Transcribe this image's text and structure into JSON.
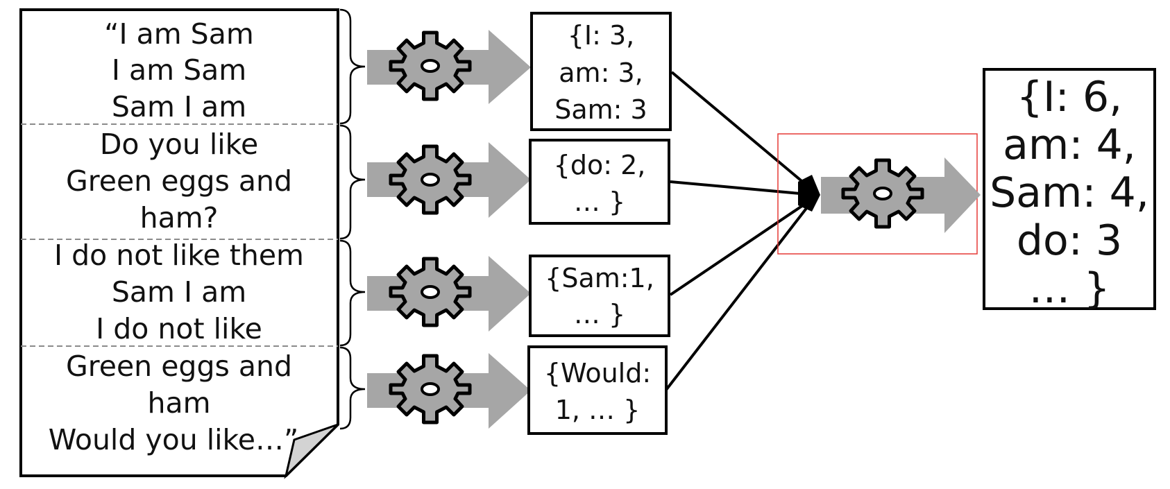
{
  "document": {
    "sections": [
      {
        "lines": [
          "“I am Sam",
          "I am Sam",
          "Sam I am"
        ]
      },
      {
        "lines": [
          "Do you like",
          "Green eggs and",
          "ham?"
        ]
      },
      {
        "lines": [
          "I do not like them",
          "Sam I am",
          "I do not like"
        ]
      },
      {
        "lines": [
          "Green eggs and",
          "ham",
          "Would you like…”"
        ]
      }
    ]
  },
  "map_outputs": [
    {
      "lines": [
        "{I: 3,",
        "am: 3,",
        "Sam: 3"
      ]
    },
    {
      "lines": [
        "{do: 2,",
        "… }"
      ]
    },
    {
      "lines": [
        "{Sam:1,",
        "… }"
      ]
    },
    {
      "lines": [
        "{Would:",
        "1, … }"
      ]
    }
  ],
  "reduce_output": {
    "lines": [
      "{I: 6,",
      "am: 4,",
      "Sam: 4,",
      "do: 3",
      "… }"
    ]
  },
  "icons": {
    "processing": "gear-icon",
    "flow": "arrow-right-icon"
  },
  "colors": {
    "arrow_fill": "#a6a6a6",
    "gear_fill": "#a6a6a6",
    "highlight": "#e53935",
    "outline": "#000000",
    "divider": "#8a8a8a"
  }
}
